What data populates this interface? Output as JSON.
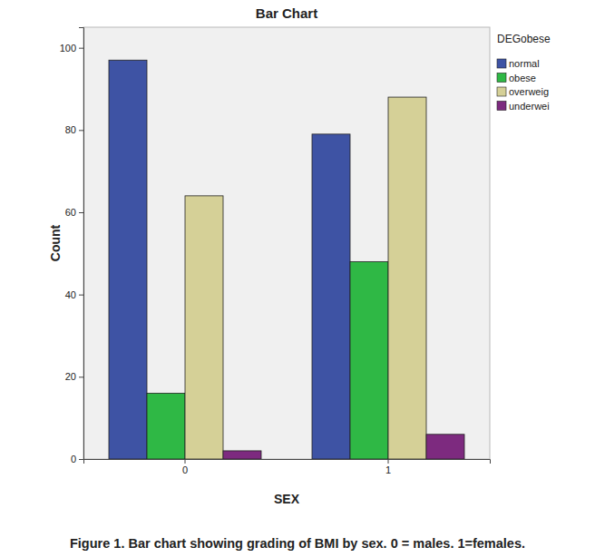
{
  "chart_data": {
    "type": "bar",
    "title": "Bar Chart",
    "x_label": "SEX",
    "y_label": "Count",
    "caption": "Figure 1. Bar chart showing grading of BMI by sex. 0 = males. 1=females.",
    "legend_title": "DEGobese",
    "categories": [
      "0",
      "1"
    ],
    "series": [
      {
        "name": "normal",
        "color": "#3e53a4",
        "values": [
          97,
          79
        ]
      },
      {
        "name": "obese",
        "color": "#2fb845",
        "values": [
          16,
          48
        ]
      },
      {
        "name": "overweig",
        "color": "#d5d097",
        "values": [
          64,
          88
        ]
      },
      {
        "name": "underwei",
        "color": "#7d2a7f",
        "values": [
          2,
          6
        ]
      }
    ],
    "ylim": [
      0,
      105
    ],
    "yticks": [
      0,
      20,
      40,
      60,
      80,
      100
    ],
    "grid": false,
    "legend": "right"
  }
}
